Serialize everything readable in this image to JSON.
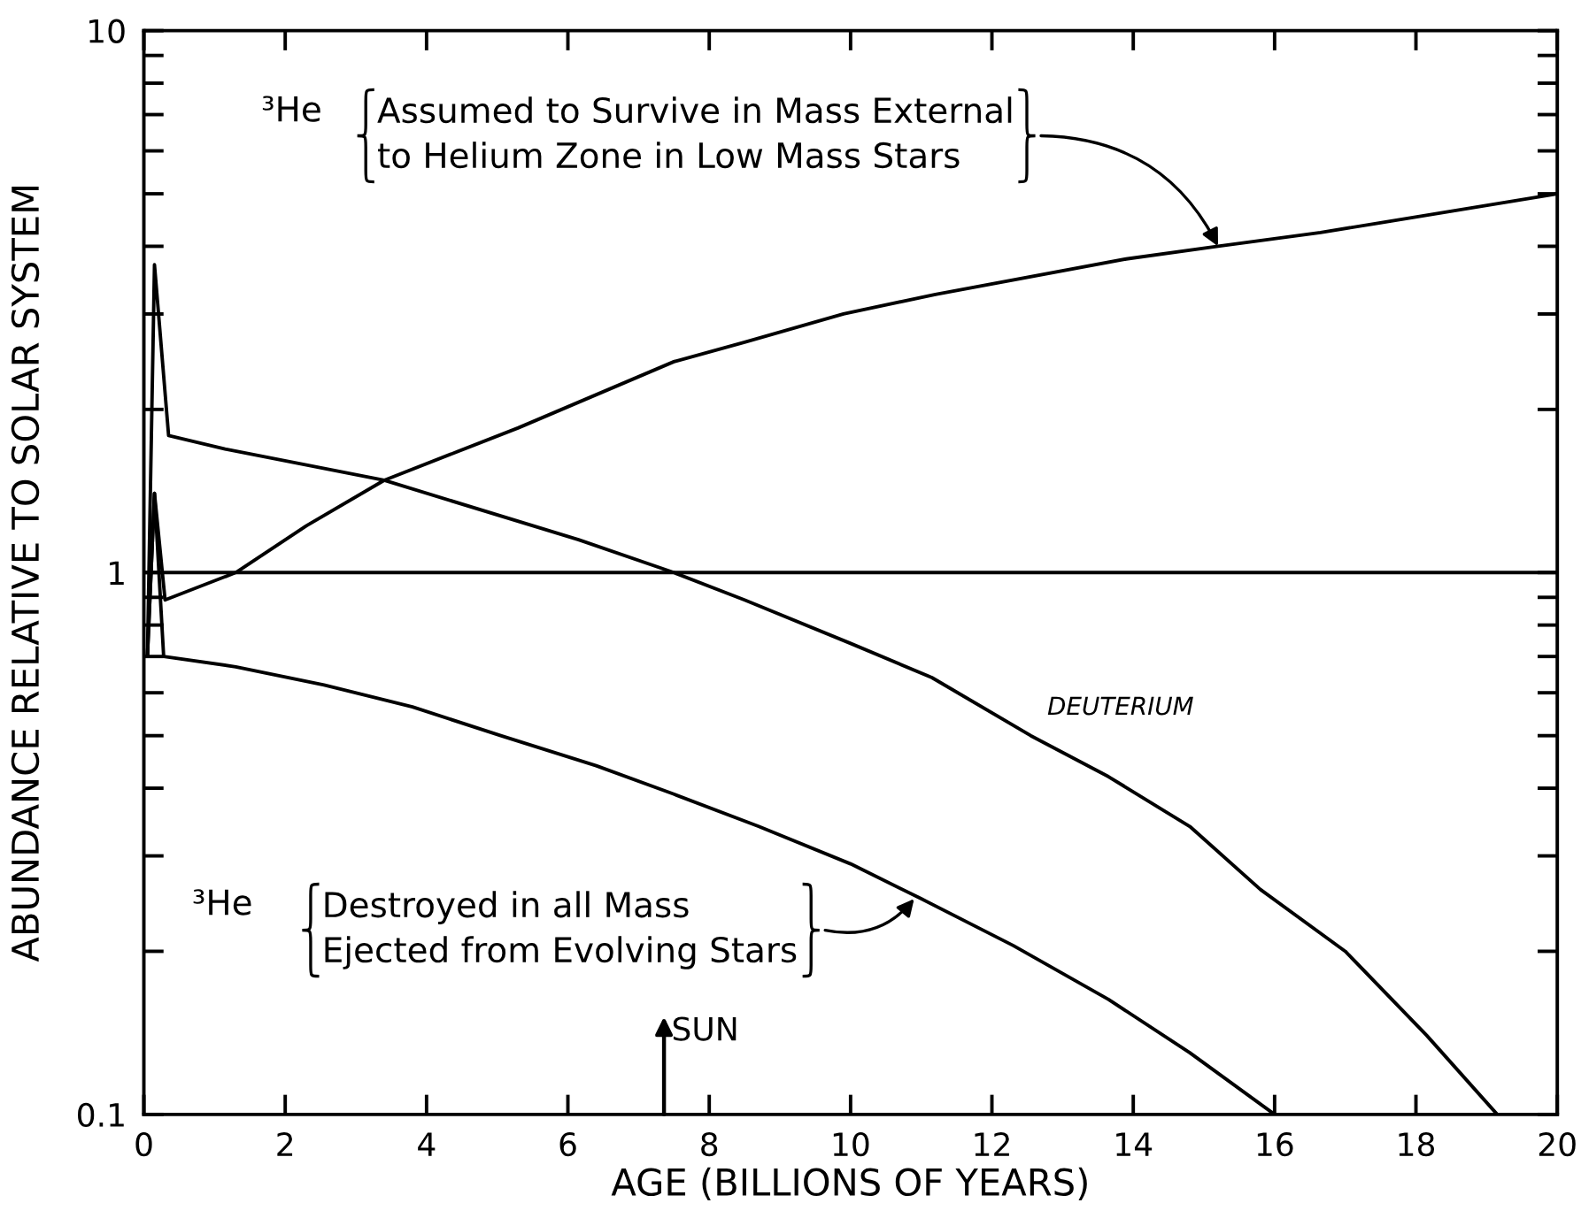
{
  "chart_data": {
    "type": "line",
    "xlabel": "AGE (BILLIONS OF YEARS)",
    "ylabel": "ABUNDANCE RELATIVE TO SOLAR SYSTEM",
    "log": "y",
    "xlim": [
      0,
      20
    ],
    "xticks": [
      0,
      2,
      4,
      6,
      8,
      10,
      12,
      14,
      16,
      18,
      20
    ],
    "ylim": [
      0.1,
      10
    ],
    "yticks": [
      0.1,
      {
        "value": 0.2,
        "label": null
      },
      {
        "value": 0.3,
        "label": null
      },
      {
        "value": 0.4,
        "label": null
      },
      {
        "value": 0.5,
        "label": null
      },
      {
        "value": 0.6,
        "label": null
      },
      {
        "value": 0.7,
        "label": null
      },
      {
        "value": 0.8,
        "label": null
      },
      {
        "value": 0.9,
        "label": null
      },
      1,
      {
        "value": 2,
        "label": null
      },
      {
        "value": 3,
        "label": null
      },
      {
        "value": 4,
        "label": null
      },
      {
        "value": 5,
        "label": null
      },
      {
        "value": 6,
        "label": null
      },
      {
        "value": 7,
        "label": null
      },
      {
        "value": 8,
        "label": null
      },
      {
        "value": 9,
        "label": null
      },
      10
    ],
    "series": [
      {
        "name": "DEUTERIUM",
        "color": "#000000",
        "x": [
          0.05,
          0.15,
          0.35,
          1.15,
          3.4,
          6.15,
          7.5,
          8.5,
          10.0,
          11.15,
          12.55,
          13.65,
          14.8,
          15.8,
          17.0,
          18.15,
          19.15
        ],
        "values": [
          0.7,
          3.7,
          1.79,
          1.69,
          1.48,
          1.15,
          1.0,
          0.89,
          0.74,
          0.64,
          0.5,
          0.42,
          0.34,
          0.26,
          0.2,
          0.14,
          0.1
        ]
      },
      {
        "color": "#000000",
        "x": [
          0.05,
          0.15,
          0.3,
          1.3,
          2.3,
          3.4,
          5.3,
          7.5,
          8.5,
          9.9,
          11.2,
          13.9,
          15.2,
          16.65,
          20
        ],
        "values": [
          0.7,
          1.4,
          0.89,
          1.0,
          1.22,
          1.48,
          1.85,
          2.45,
          2.66,
          3.0,
          3.26,
          3.79,
          4.0,
          4.24,
          5.0
        ]
      },
      {
        "color": "#000000",
        "x": [
          0.05,
          0.15,
          0.28,
          1.3,
          2.55,
          3.8,
          5.05,
          6.4,
          7.5,
          8.7,
          10.0,
          11.0,
          12.3,
          13.65,
          14.8,
          16.0
        ],
        "values": [
          0.7,
          1.4,
          0.7,
          0.67,
          0.62,
          0.565,
          0.5,
          0.44,
          0.39,
          0.34,
          0.29,
          0.25,
          0.205,
          0.163,
          0.13,
          0.1
        ]
      }
    ],
    "ref_lines": [
      {
        "axis": "y",
        "value": 1,
        "color": "#000000"
      }
    ],
    "annotations": [
      "³He",
      {
        "text": "Assumed to Survive in Mass External\nto Helium Zone in Low Mass Stars",
        "x": 15.2,
        "y": 4.0
      },
      "³He",
      {
        "text": "Destroyed in all Mass\nEjected from Evolving Stars",
        "x": 10.9,
        "y": 0.25
      },
      "SUN"
    ]
  }
}
